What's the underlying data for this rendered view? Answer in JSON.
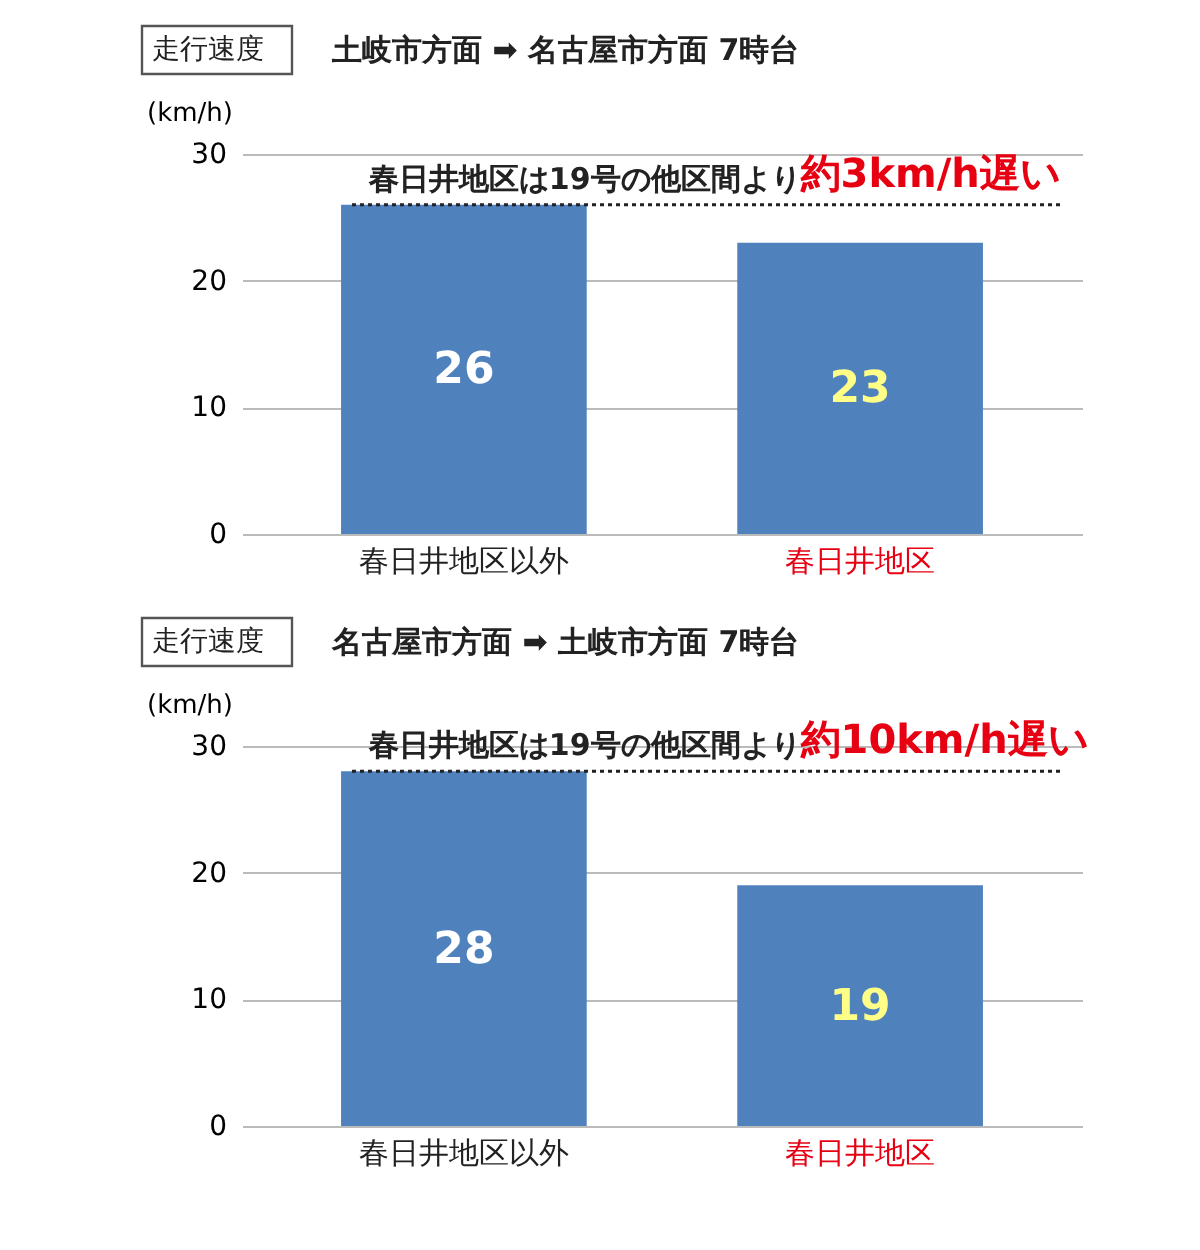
{
  "chart_data": [
    {
      "type": "bar",
      "title": "走行速度",
      "subtitle": "土岐市方面 ➡ 名古屋市方面  7時台",
      "ylabel": "(km/h)",
      "categories": [
        "春日井地区以外",
        "春日井地区"
      ],
      "values": [
        26,
        23
      ],
      "colors": [
        "#4f81bd",
        "#4f81bd"
      ],
      "ylim": [
        0,
        30
      ],
      "yticks": [
        0,
        10,
        20,
        30
      ],
      "grid": "y",
      "data_labels": true,
      "ref_lines": [
        {
          "axis": "y",
          "value": 26,
          "color": "#222222",
          "line_style": "dotted"
        }
      ],
      "annotations": [
        "春日井地区は19号の他区間より",
        "約3km/h遅い"
      ]
    },
    {
      "type": "bar",
      "title": "走行速度",
      "subtitle": "名古屋市方面 ➡ 土岐市方面  7時台",
      "ylabel": "(km/h)",
      "categories": [
        "春日井地区以外",
        "春日井地区"
      ],
      "values": [
        28,
        19
      ],
      "colors": [
        "#4f81bd",
        "#4f81bd"
      ],
      "ylim": [
        0,
        30
      ],
      "yticks": [
        0,
        10,
        20,
        30
      ],
      "grid": "y",
      "data_labels": true,
      "ref_lines": [
        {
          "axis": "y",
          "value": 28,
          "color": "#222222",
          "line_style": "dotted"
        }
      ],
      "annotations": [
        "春日井地区は19号の他区間より",
        "約10km/h遅い"
      ]
    }
  ]
}
